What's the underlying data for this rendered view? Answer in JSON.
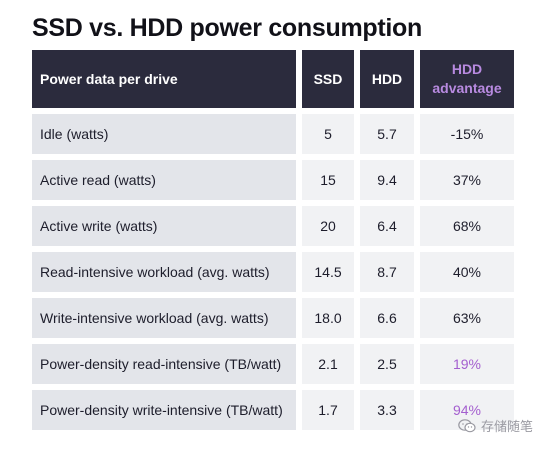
{
  "title": "SSD vs. HDD power consumption",
  "table": {
    "headers": [
      "Power data per drive",
      "SSD",
      "HDD",
      "HDD advantage"
    ],
    "rows": [
      {
        "metric": "Idle (watts)",
        "ssd": "5",
        "hdd": "5.7",
        "advantage": "-15%"
      },
      {
        "metric": "Active read (watts)",
        "ssd": "15",
        "hdd": "9.4",
        "advantage": "37%"
      },
      {
        "metric": "Active write (watts)",
        "ssd": "20",
        "hdd": "6.4",
        "advantage": "68%"
      },
      {
        "metric": "Read-intensive workload (avg. watts)",
        "ssd": "14.5",
        "hdd": "8.7",
        "advantage": "40%"
      },
      {
        "metric": "Write-intensive workload (avg. watts)",
        "ssd": "18.0",
        "hdd": "6.6",
        "advantage": "63%"
      },
      {
        "metric": "Power-density read-intensive (TB/watt)",
        "ssd": "2.1",
        "hdd": "2.5",
        "advantage": "19%"
      },
      {
        "metric": "Power-density write-intensive (TB/watt)",
        "ssd": "1.7",
        "hdd": "3.3",
        "advantage": "94%"
      }
    ]
  },
  "watermark": {
    "icon": "wechat-icon",
    "text": "存储随笔"
  },
  "colors": {
    "header_bg": "#2b2b3d",
    "accent_purple": "#a45fcf",
    "row_bg": "#e3e5ea",
    "value_bg": "#f1f2f4"
  }
}
